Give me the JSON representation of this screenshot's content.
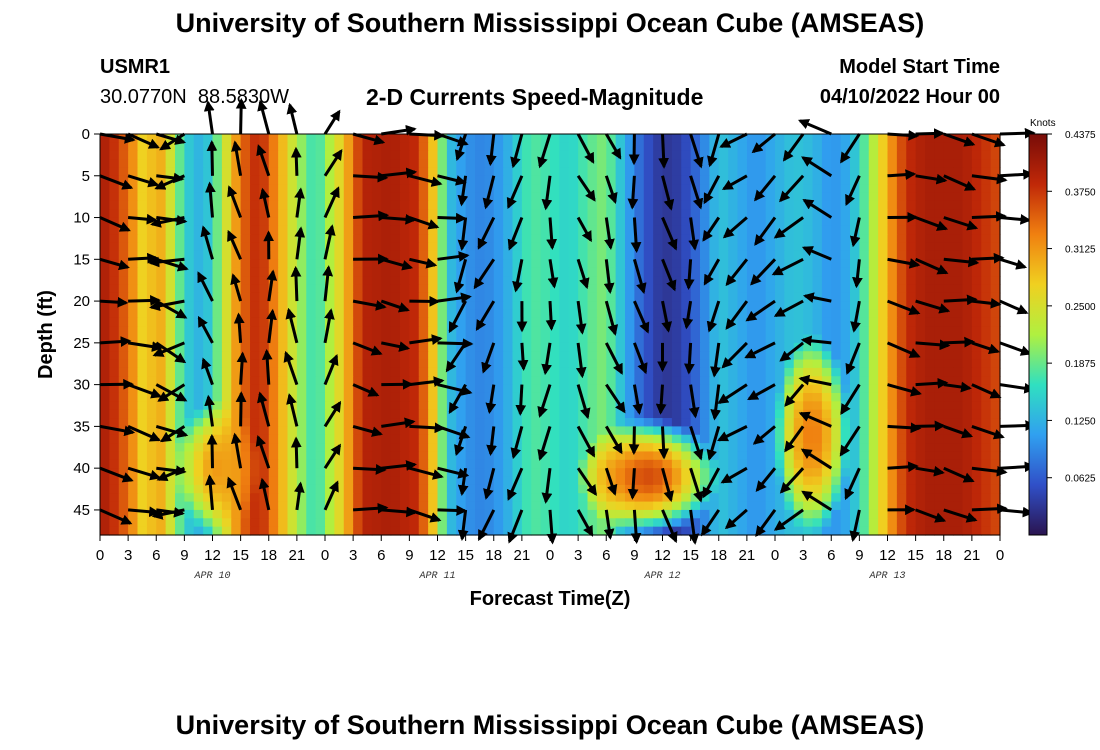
{
  "page": {
    "title": "University of Southern Mississippi Ocean Cube (AMSEAS)",
    "footer_title": "University of Southern Mississippi Ocean Cube (AMSEAS)",
    "station_id": "USMR1",
    "station_coords": "30.0770N  88.5830W",
    "model_start_label": "Model Start Time",
    "model_start_value": "04/10/2022 Hour 00"
  },
  "chart_data": {
    "type": "heatmap",
    "title": "2-D Currents Speed-Magnitude",
    "xlabel": "Forecast Time(Z)",
    "ylabel": "Depth (ft)",
    "x_ticks": [
      "0",
      "3",
      "6",
      "9",
      "12",
      "15",
      "18",
      "21",
      "0",
      "3",
      "6",
      "9",
      "12",
      "15",
      "18",
      "21",
      "0",
      "3",
      "6",
      "9",
      "12",
      "15",
      "18",
      "21",
      "0",
      "3",
      "6",
      "9",
      "12",
      "15",
      "18",
      "21",
      "0"
    ],
    "date_labels": [
      {
        "label": "APR 10",
        "hour": 12
      },
      {
        "label": "APR 11",
        "hour": 36
      },
      {
        "label": "APR 12",
        "hour": 60
      },
      {
        "label": "APR 13",
        "hour": 84
      }
    ],
    "xlim_hours": [
      0,
      96
    ],
    "y_ticks": [
      "0",
      "5",
      "10",
      "15",
      "20",
      "25",
      "30",
      "35",
      "40",
      "45"
    ],
    "ylim_ft": [
      0,
      48
    ],
    "colorbar": {
      "unit": "Knots",
      "min": 0,
      "max": 0.4375,
      "tick_labels": [
        "0.4375",
        "0.3750",
        "0.3125",
        "0.2500",
        "0.1875",
        "0.1250",
        "0.0625"
      ],
      "tick_values": [
        0.4375,
        0.375,
        0.3125,
        0.25,
        0.1875,
        0.125,
        0.0625
      ],
      "colors": [
        "#2a1450",
        "#3050c8",
        "#30a0f0",
        "#30e0c0",
        "#b0f040",
        "#f0d020",
        "#f08010",
        "#c02808",
        "#780c08"
      ]
    },
    "speed_profile_knots": [
      [
        0,
        0.4
      ],
      [
        1,
        0.39
      ],
      [
        3,
        0.34
      ],
      [
        5,
        0.25
      ],
      [
        6,
        0.32
      ],
      [
        8,
        0.22
      ],
      [
        9,
        0.15
      ],
      [
        11,
        0.12
      ],
      [
        12,
        0.16
      ],
      [
        13,
        0.22
      ],
      [
        15,
        0.34
      ],
      [
        17,
        0.39
      ],
      [
        19,
        0.31
      ],
      [
        21,
        0.22
      ],
      [
        23,
        0.16
      ],
      [
        24,
        0.2
      ],
      [
        26,
        0.28
      ],
      [
        28,
        0.39
      ],
      [
        31,
        0.4
      ],
      [
        34,
        0.38
      ],
      [
        36,
        0.25
      ],
      [
        37,
        0.14
      ],
      [
        39,
        0.1
      ],
      [
        41,
        0.09
      ],
      [
        43,
        0.11
      ],
      [
        45,
        0.16
      ],
      [
        46,
        0.18
      ],
      [
        48,
        0.17
      ],
      [
        50,
        0.15
      ],
      [
        52,
        0.18
      ],
      [
        54,
        0.2
      ],
      [
        56,
        0.12
      ],
      [
        58,
        0.06
      ],
      [
        60,
        0.03
      ],
      [
        62,
        0.04
      ],
      [
        64,
        0.08
      ],
      [
        66,
        0.14
      ],
      [
        68,
        0.12
      ],
      [
        70,
        0.1
      ],
      [
        72,
        0.12
      ],
      [
        74,
        0.14
      ],
      [
        76,
        0.13
      ],
      [
        78,
        0.1
      ],
      [
        80,
        0.12
      ],
      [
        82,
        0.2
      ],
      [
        84,
        0.3
      ],
      [
        86,
        0.38
      ],
      [
        88,
        0.4
      ],
      [
        90,
        0.4
      ],
      [
        92,
        0.4
      ],
      [
        94,
        0.38
      ],
      [
        96,
        0.36
      ]
    ],
    "depth_modifiers": [
      {
        "hour_range": [
          51,
          66
        ],
        "depth_range": [
          34,
          48
        ],
        "speed": 0.36
      },
      {
        "hour_range": [
          72,
          80
        ],
        "depth_range": [
          24,
          48
        ],
        "speed": 0.33
      },
      {
        "hour_range": [
          8,
          17
        ],
        "depth_range": [
          32,
          48
        ],
        "speed": 0.31
      }
    ],
    "vectors": {
      "hours": [
        0,
        3,
        6,
        9,
        12,
        15,
        18,
        21,
        24,
        27,
        30,
        33,
        36,
        39,
        42,
        45,
        48,
        51,
        54,
        57,
        60,
        63,
        66,
        69,
        72,
        75,
        78,
        81,
        84,
        87,
        90,
        93,
        96
      ],
      "depths_ft": [
        0,
        5,
        10,
        15,
        20,
        25,
        30,
        35,
        40,
        45
      ],
      "direction_deg_by_hour": [
        100,
        100,
        110,
        250,
        345,
        350,
        355,
        355,
        20,
        100,
        95,
        95,
        95,
        200,
        200,
        190,
        185,
        160,
        160,
        170,
        170,
        175,
        200,
        230,
        230,
        230,
        290,
        200,
        100,
        100,
        100,
        100,
        100
      ]
    }
  }
}
